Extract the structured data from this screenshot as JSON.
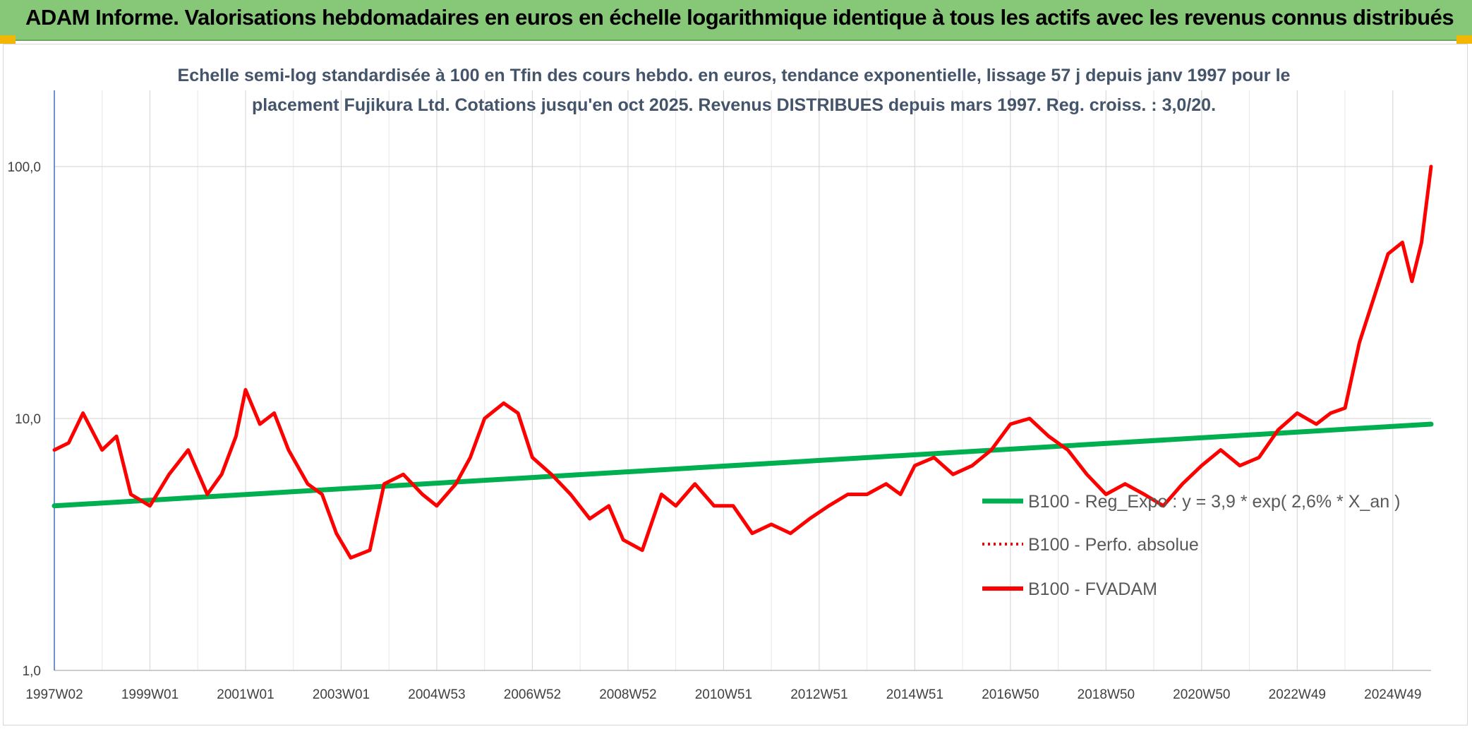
{
  "header": {
    "title": "ADAM Informe. Valorisations hebdomadaires en euros en échelle logarithmique identique à tous les actifs avec les revenus connus distribués"
  },
  "chart_data": {
    "type": "line",
    "title_lines": [
      "Echelle semi-log standardisée à 100 en Tfin des cours hebdo. en euros, tendance exponentielle, lissage 57 j depuis janv 1997 pour le",
      "placement Fujikura Ltd. Cotations jusqu'en oct 2025. Revenus DISTRIBUES depuis mars 1997. Reg. croiss. : 3,0/20."
    ],
    "y_scale": "log",
    "ylim": [
      1,
      100
    ],
    "y_ticks": [
      {
        "value": 1,
        "label": "1,0"
      },
      {
        "value": 10,
        "label": "10,0"
      },
      {
        "value": 100,
        "label": "100,0"
      }
    ],
    "x_range": [
      1997.0,
      2025.8
    ],
    "x_ticks": [
      {
        "value": 1997.0,
        "label": "1997W02"
      },
      {
        "value": 1999.0,
        "label": "1999W01"
      },
      {
        "value": 2001.0,
        "label": "2001W01"
      },
      {
        "value": 2003.0,
        "label": "2003W01"
      },
      {
        "value": 2005.0,
        "label": "2004W53"
      },
      {
        "value": 2007.0,
        "label": "2006W52"
      },
      {
        "value": 2009.0,
        "label": "2008W52"
      },
      {
        "value": 2011.0,
        "label": "2010W51"
      },
      {
        "value": 2013.0,
        "label": "2012W51"
      },
      {
        "value": 2015.0,
        "label": "2014W51"
      },
      {
        "value": 2017.0,
        "label": "2016W50"
      },
      {
        "value": 2019.0,
        "label": "2018W50"
      },
      {
        "value": 2021.0,
        "label": "2020W50"
      },
      {
        "value": 2023.0,
        "label": "2022W49"
      },
      {
        "value": 2025.0,
        "label": "2024W49"
      }
    ],
    "grid": true,
    "legend_position": "right",
    "series": [
      {
        "name": "B100 - Reg_Expo : y = 3,9 * exp( 2,6% *  X_an )",
        "color": "#00b050",
        "style": "solid",
        "x": [
          1997.0,
          2025.8
        ],
        "values": [
          4.5,
          9.5
        ]
      },
      {
        "name": "B100 - Perfo. absolue",
        "color": "#ff0000",
        "style": "dotted",
        "x": [],
        "values": []
      },
      {
        "name": "B100 - FVADAM",
        "color": "#ff0000",
        "style": "solid",
        "x": [
          1997.0,
          1997.3,
          1997.6,
          1998.0,
          1998.3,
          1998.6,
          1999.0,
          1999.4,
          1999.8,
          2000.2,
          2000.5,
          2000.8,
          2001.0,
          2001.3,
          2001.6,
          2001.9,
          2002.3,
          2002.6,
          2002.9,
          2003.2,
          2003.6,
          2003.9,
          2004.3,
          2004.7,
          2005.0,
          2005.4,
          2005.7,
          2006.0,
          2006.4,
          2006.7,
          2007.0,
          2007.4,
          2007.8,
          2008.2,
          2008.6,
          2008.9,
          2009.3,
          2009.7,
          2010.0,
          2010.4,
          2010.8,
          2011.2,
          2011.6,
          2012.0,
          2012.4,
          2012.8,
          2013.2,
          2013.6,
          2014.0,
          2014.4,
          2014.7,
          2015.0,
          2015.4,
          2015.8,
          2016.2,
          2016.6,
          2017.0,
          2017.4,
          2017.8,
          2018.2,
          2018.6,
          2019.0,
          2019.4,
          2019.8,
          2020.2,
          2020.6,
          2021.0,
          2021.4,
          2021.8,
          2022.2,
          2022.6,
          2023.0,
          2023.4,
          2023.7,
          2024.0,
          2024.3,
          2024.6,
          2024.9,
          2025.2,
          2025.4,
          2025.6,
          2025.8
        ],
        "values": [
          7.5,
          8.0,
          10.5,
          7.5,
          8.5,
          5.0,
          4.5,
          6.0,
          7.5,
          5.0,
          6.0,
          8.5,
          13.0,
          9.5,
          10.5,
          7.5,
          5.5,
          5.0,
          3.5,
          2.8,
          3.0,
          5.5,
          6.0,
          5.0,
          4.5,
          5.5,
          7.0,
          10.0,
          11.5,
          10.5,
          7.0,
          6.0,
          5.0,
          4.0,
          4.5,
          3.3,
          3.0,
          5.0,
          4.5,
          5.5,
          4.5,
          4.5,
          3.5,
          3.8,
          3.5,
          4.0,
          4.5,
          5.0,
          5.0,
          5.5,
          5.0,
          6.5,
          7.0,
          6.0,
          6.5,
          7.5,
          9.5,
          10.0,
          8.5,
          7.5,
          6.0,
          5.0,
          5.5,
          5.0,
          4.5,
          5.5,
          6.5,
          7.5,
          6.5,
          7.0,
          9.0,
          10.5,
          9.5,
          10.5,
          11.0,
          20.0,
          30.0,
          45.0,
          50.0,
          35.0,
          50.0,
          100.0
        ]
      }
    ]
  }
}
